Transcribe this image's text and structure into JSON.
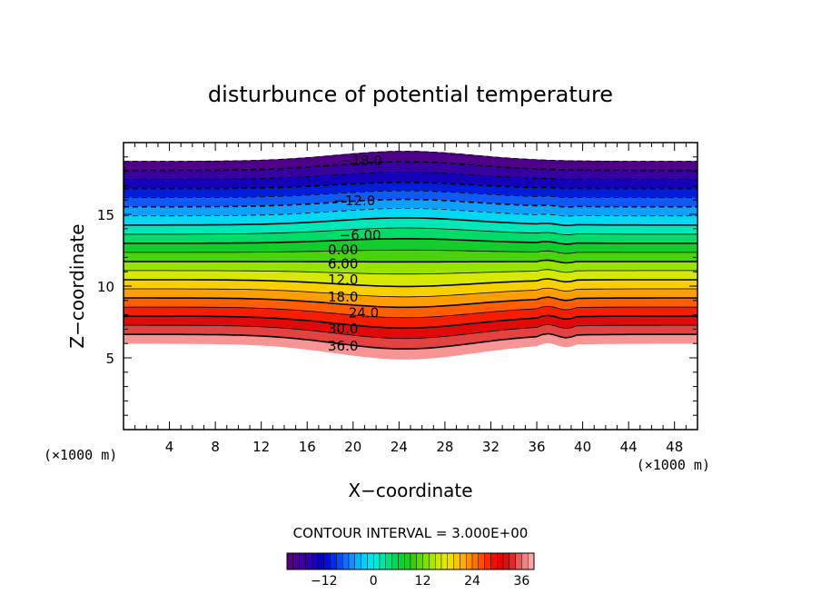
{
  "chart_data": {
    "type": "contour",
    "title": "disturbunce of potential temperature",
    "xlabel": "X−coordinate",
    "ylabel": "Z−coordinate",
    "x_unit_left": "(×1000 m)",
    "x_unit_right": "(×1000 m)",
    "xlim": [
      0,
      50
    ],
    "ylim": [
      0,
      20
    ],
    "x_ticks": [
      4,
      8,
      12,
      16,
      20,
      24,
      28,
      32,
      36,
      40,
      44,
      48
    ],
    "y_ticks": [
      5,
      10,
      15
    ],
    "contour_interval_text": "CONTOUR INTERVAL = 3.000E+00",
    "contour_labels": [
      {
        "text": "−18.0",
        "x": 18.9,
        "z": 18.8
      },
      {
        "text": "−12.0",
        "x": 18.3,
        "z": 16.0
      },
      {
        "text": "−6.00",
        "x": 18.8,
        "z": 13.6
      },
      {
        "text": "0.00",
        "x": 17.8,
        "z": 12.6
      },
      {
        "text": "6.00",
        "x": 17.8,
        "z": 11.6
      },
      {
        "text": "12.0",
        "x": 17.8,
        "z": 10.5
      },
      {
        "text": "18.0",
        "x": 17.8,
        "z": 9.3
      },
      {
        "text": "24.0",
        "x": 19.6,
        "z": 8.2
      },
      {
        "text": "30.0",
        "x": 17.8,
        "z": 7.1
      },
      {
        "text": "36.0",
        "x": 17.8,
        "z": 5.9
      }
    ],
    "colorbar": {
      "range": [
        -21,
        39
      ],
      "tick_values": [
        -12,
        0,
        12,
        24,
        36
      ],
      "tick_labels": [
        "−12",
        "0",
        "12",
        "24",
        "36"
      ]
    },
    "grid": false
  }
}
